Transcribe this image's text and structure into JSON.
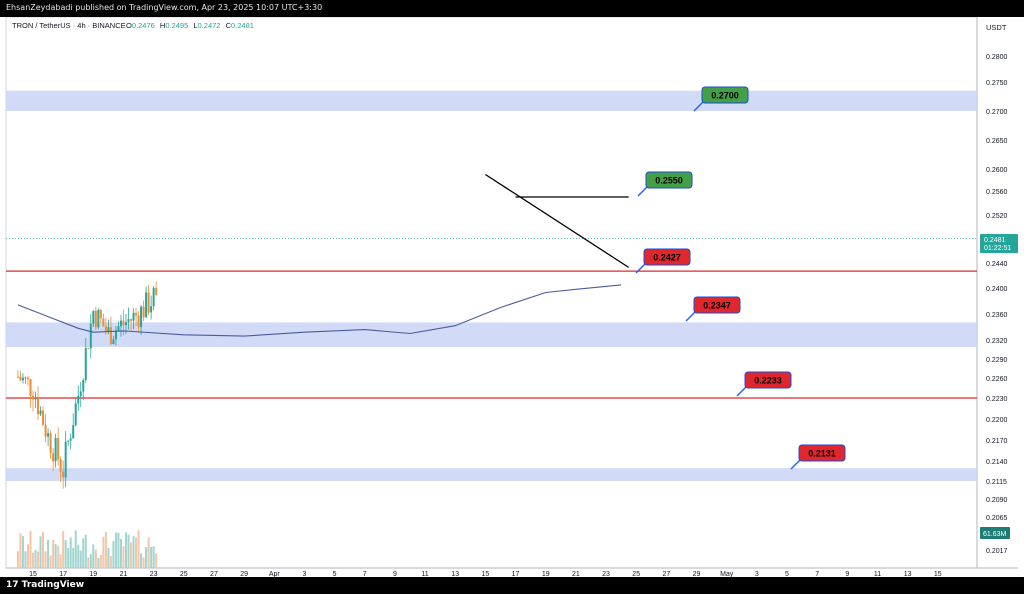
{
  "header": {
    "published": "EhsanZeydabadi published on TradingView.com, Apr 23, 2025 10:07 UTC+3:30"
  },
  "footer": {
    "brand": "TradingView",
    "brand_logo": "17"
  },
  "legend": {
    "symbol": "TRON / TetherUS · 4h · BINANCE",
    "o_label": "O",
    "o": "0.2476",
    "h_label": "H",
    "h": "0.2495",
    "l_label": "L",
    "l": "0.2472",
    "c_label": "C",
    "c": "0.2481"
  },
  "colors": {
    "up": "#26a69a",
    "down": "#f08c35",
    "ma": "#4d5b9e",
    "zone": "#c9d4f5",
    "redline": "#e0272d",
    "green_tag": "#43a047",
    "red_tag": "#e0272d"
  },
  "chart_data": {
    "type": "candlestick",
    "quote_currency": "USDT",
    "y_ticks": [
      "0.2800",
      "0.2750",
      "0.2700",
      "0.2650",
      "0.2600",
      "0.2560",
      "0.2520",
      "0.2480",
      "0.2440",
      "0.2400",
      "0.2360",
      "0.2320",
      "0.2290",
      "0.2260",
      "0.2230",
      "0.2200",
      "0.2170",
      "0.2140",
      "0.2115",
      "0.2090",
      "0.2065",
      "0.2040",
      "0.2017"
    ],
    "x_ticks": [
      "15",
      "17",
      "19",
      "21",
      "23",
      "25",
      "27",
      "29",
      "Apr",
      "3",
      "5",
      "7",
      "9",
      "11",
      "13",
      "15",
      "17",
      "19",
      "21",
      "23",
      "25",
      "27",
      "29",
      "May",
      "3",
      "5",
      "7",
      "9",
      "11",
      "13",
      "15"
    ],
    "last_price": "0.2481",
    "countdown": "01:22:51",
    "volume_label": "61.63M",
    "close_path": [
      [
        "Mar 14",
        0.2262
      ],
      [
        "Mar 15",
        0.2245
      ],
      [
        "Mar 16",
        0.2175
      ],
      [
        "Mar 17",
        0.213
      ],
      [
        "Mar 17.5",
        0.2185
      ],
      [
        "Mar 18",
        0.2235
      ],
      [
        "Mar 19",
        0.2365
      ],
      [
        "Mar 20",
        0.233
      ],
      [
        "Mar 21",
        0.2345
      ],
      [
        "Mar 22",
        0.236
      ],
      [
        "Mar 23",
        0.2385
      ],
      [
        "Mar 24",
        0.2305
      ],
      [
        "Mar 25",
        0.2275
      ],
      [
        "Mar 26",
        0.229
      ],
      [
        "Mar 27",
        0.232
      ],
      [
        "Mar 28",
        0.235
      ],
      [
        "Mar 29",
        0.234
      ],
      [
        "Mar 30",
        0.232
      ],
      [
        "Mar 31",
        0.235
      ],
      [
        "Apr 1",
        0.2385
      ],
      [
        "Apr 2",
        0.2395
      ],
      [
        "Apr 3",
        0.238
      ],
      [
        "Apr 4",
        0.2395
      ],
      [
        "Apr 5",
        0.2385
      ],
      [
        "Apr 6",
        0.2345
      ],
      [
        "Apr 7",
        0.2245
      ],
      [
        "Apr 8",
        0.2305
      ],
      [
        "Apr 9",
        0.2315
      ],
      [
        "Apr 10",
        0.239
      ],
      [
        "Apr 11",
        0.2415
      ],
      [
        "Apr 12",
        0.245
      ],
      [
        "Apr 13",
        0.2505
      ],
      [
        "Apr 14",
        0.2575
      ],
      [
        "Apr 15",
        0.253
      ],
      [
        "Apr 16",
        0.2525
      ],
      [
        "Apr 17",
        0.2475
      ],
      [
        "Apr 18",
        0.244
      ],
      [
        "Apr 19",
        0.242
      ],
      [
        "Apr 20",
        0.243
      ],
      [
        "Apr 21",
        0.2445
      ],
      [
        "Apr 22",
        0.246
      ],
      [
        "Apr 23",
        0.2481
      ]
    ],
    "ma_path": [
      [
        "Mar 14",
        0.2374
      ],
      [
        "Mar 16",
        0.2356
      ],
      [
        "Mar 18",
        0.2338
      ],
      [
        "Mar 19",
        0.2332
      ],
      [
        "Mar 21",
        0.2334
      ],
      [
        "Mar 25",
        0.2328
      ],
      [
        "Mar 29",
        0.2326
      ],
      [
        "Apr 2",
        0.2332
      ],
      [
        "Apr 6",
        0.2336
      ],
      [
        "Apr 9",
        0.233
      ],
      [
        "Apr 12",
        0.2342
      ],
      [
        "Apr 15",
        0.237
      ],
      [
        "Apr 18",
        0.2393
      ],
      [
        "Apr 20",
        0.2398
      ],
      [
        "Apr 23",
        0.2405
      ]
    ],
    "zones": [
      {
        "from": 0.27,
        "to": 0.2735
      },
      {
        "from": 0.2309,
        "to": 0.2347
      },
      {
        "from": 0.2115,
        "to": 0.2131
      }
    ],
    "horizontal_lines": [
      0.2427,
      0.223
    ],
    "levels": [
      {
        "label": "0.2700",
        "style": "green"
      },
      {
        "label": "0.2550",
        "style": "green"
      },
      {
        "label": "0.2427",
        "style": "red"
      },
      {
        "label": "0.2347",
        "style": "red"
      },
      {
        "label": "0.2233",
        "style": "red"
      },
      {
        "label": "0.2131",
        "style": "red"
      }
    ],
    "trend_lines": [
      {
        "from": [
          "Apr 14",
          0.259
        ],
        "to": [
          "Apr 23.5",
          0.2433
        ]
      },
      {
        "from": [
          "Apr 16",
          0.255
        ],
        "to": [
          "Apr 23.5",
          0.255
        ]
      }
    ]
  }
}
